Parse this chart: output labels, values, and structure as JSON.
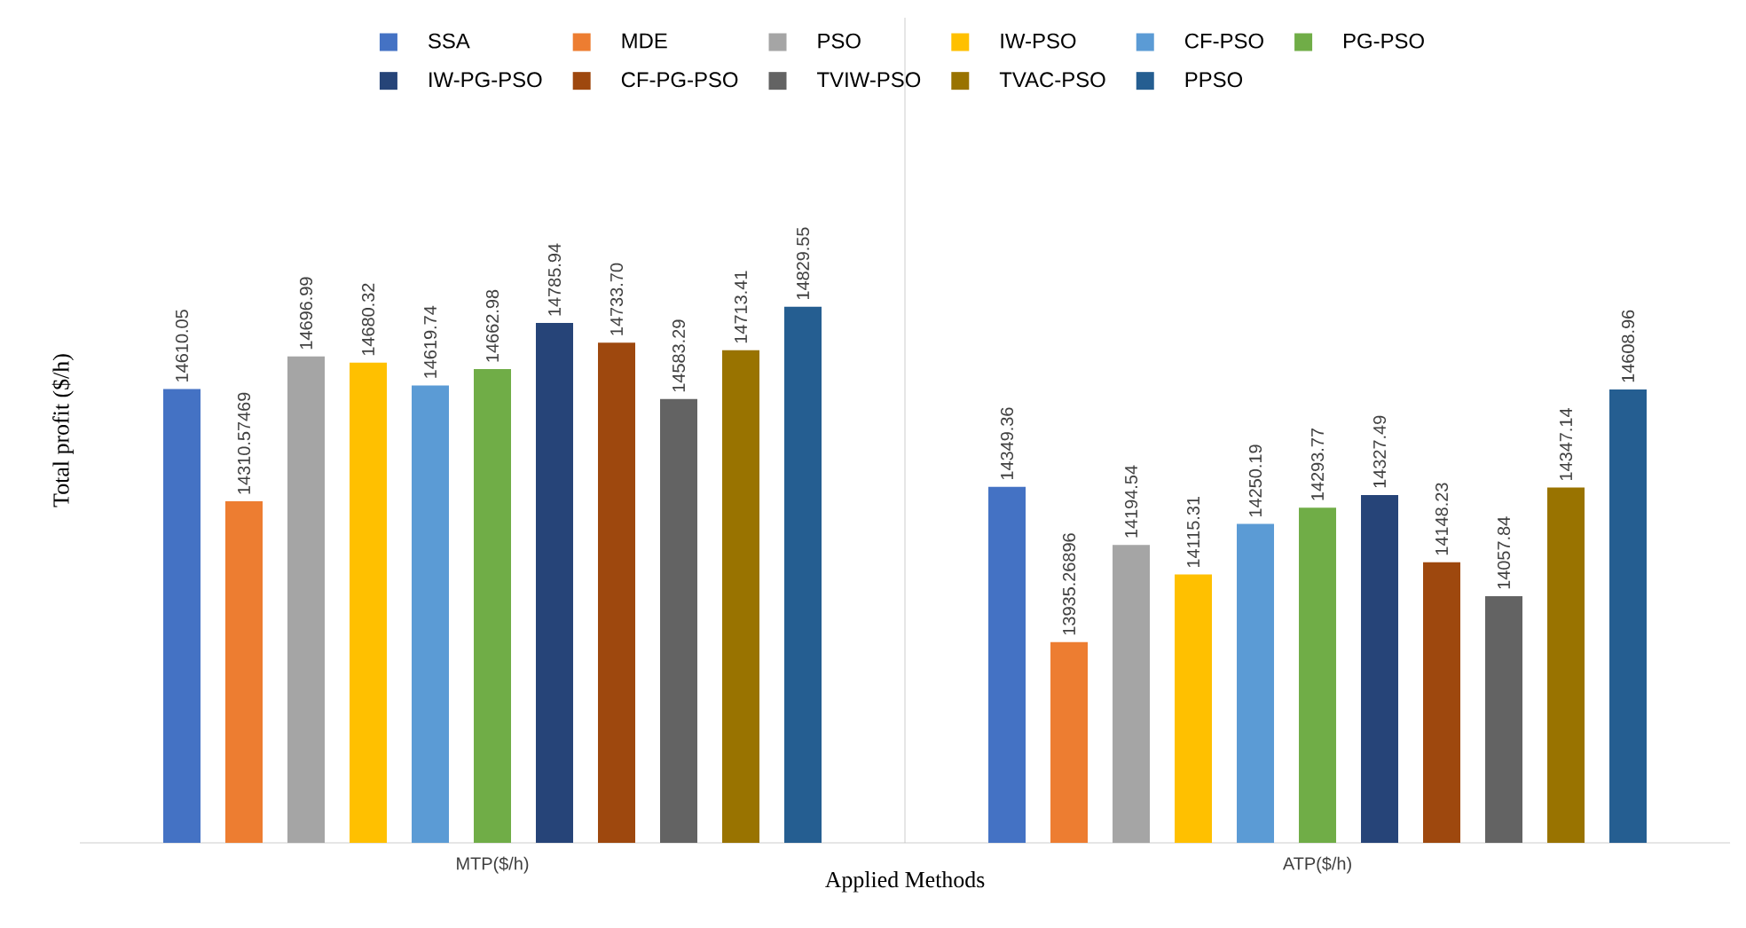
{
  "chart_data": {
    "type": "bar",
    "xlabel": "Applied Methods",
    "ylabel": "Total profit ($/h)",
    "categories": [
      "MTP($/h)",
      "ATP($/h)"
    ],
    "ylim": [
      13400,
      15600
    ],
    "tick_labels": "x",
    "grid": "x",
    "legend": "top",
    "series": [
      {
        "name": "SSA",
        "color": "#4472c4",
        "values": [
          14610.05,
          14349.36
        ],
        "value_labels": [
          "14610.05",
          "14349.36"
        ]
      },
      {
        "name": "MDE",
        "color": "#ed7d31",
        "values": [
          14310.57469,
          13935.26896
        ],
        "value_labels": [
          "14310.57469",
          "13935.26896"
        ]
      },
      {
        "name": "PSO",
        "color": "#a5a5a5",
        "values": [
          14696.99,
          14194.54
        ],
        "value_labels": [
          "14696.99",
          "14194.54"
        ]
      },
      {
        "name": "IW-PSO",
        "color": "#ffc000",
        "values": [
          14680.32,
          14115.31
        ],
        "value_labels": [
          "14680.32",
          "14115.31"
        ]
      },
      {
        "name": "CF-PSO",
        "color": "#5b9bd5",
        "values": [
          14619.74,
          14250.19
        ],
        "value_labels": [
          "14619.74",
          "14250.19"
        ]
      },
      {
        "name": "PG-PSO",
        "color": "#70ad47",
        "values": [
          14662.98,
          14293.77
        ],
        "value_labels": [
          "14662.98",
          "14293.77"
        ]
      },
      {
        "name": "IW-PG-PSO",
        "color": "#264478",
        "values": [
          14785.94,
          14327.49
        ],
        "value_labels": [
          "14785.94",
          "14327.49"
        ]
      },
      {
        "name": "CF-PG-PSO",
        "color": "#9e480e",
        "values": [
          14733.7,
          14148.23
        ],
        "value_labels": [
          "14733.70",
          "14148.23"
        ]
      },
      {
        "name": "TVIW-PSO",
        "color": "#636363",
        "values": [
          14583.29,
          14057.84
        ],
        "value_labels": [
          "14583.29",
          "14057.84"
        ]
      },
      {
        "name": "TVAC-PSO",
        "color": "#997300",
        "values": [
          14713.41,
          14347.14
        ],
        "value_labels": [
          "14713.41",
          "14347.14"
        ]
      },
      {
        "name": "PPSO",
        "color": "#255e91",
        "values": [
          14829.55,
          14608.96
        ],
        "value_labels": [
          "14829.55",
          "14608.96"
        ]
      }
    ]
  }
}
